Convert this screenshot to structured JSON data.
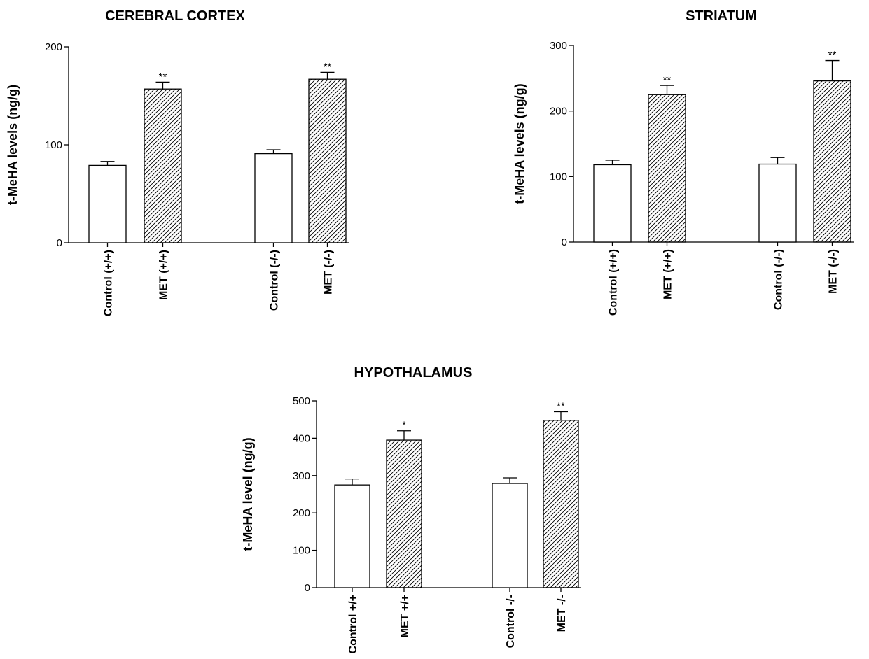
{
  "chart_data": [
    {
      "type": "bar",
      "title": "CEREBRAL CORTEX",
      "ylabel": "t-MeHA levels (ng/g)",
      "xlabel": "",
      "ylim": [
        0,
        200
      ],
      "yticks": [
        0,
        100,
        200
      ],
      "categories": [
        "Control (+/+)",
        "MET (+/+)",
        "Control (-/-)",
        "MET (-/-)"
      ],
      "values": [
        79,
        157,
        91,
        167
      ],
      "errors": [
        4,
        7,
        4,
        7
      ],
      "significance": [
        "",
        "**",
        "",
        "**"
      ],
      "fill": [
        "white",
        "hatched",
        "white",
        "hatched"
      ],
      "grid": false
    },
    {
      "type": "bar",
      "title": "STRIATUM",
      "ylabel": "t-MeHA levels  (ng/g)",
      "xlabel": "",
      "ylim": [
        0,
        300
      ],
      "yticks": [
        0,
        100,
        200,
        300
      ],
      "categories": [
        "Control (+/+)",
        "MET (+/+)",
        "Control (-/-)",
        "MET (-/-)"
      ],
      "values": [
        118,
        225,
        119,
        246
      ],
      "errors": [
        7,
        14,
        10,
        31
      ],
      "significance": [
        "",
        "**",
        "",
        "**"
      ],
      "fill": [
        "white",
        "hatched",
        "white",
        "hatched"
      ],
      "grid": false
    },
    {
      "type": "bar",
      "title": "HYPOTHALAMUS",
      "ylabel": "t-MeHA level (ng/g)",
      "xlabel": "",
      "ylim": [
        0,
        500
      ],
      "yticks": [
        0,
        100,
        200,
        300,
        400,
        500
      ],
      "categories": [
        "Control +/+",
        "MET +/+",
        "Control -/-",
        "MET -/-"
      ],
      "values": [
        275,
        395,
        279,
        448
      ],
      "errors": [
        16,
        25,
        15,
        23
      ],
      "significance": [
        "",
        "*",
        "",
        "**"
      ],
      "fill": [
        "white",
        "hatched",
        "white",
        "hatched"
      ],
      "grid": false
    }
  ]
}
